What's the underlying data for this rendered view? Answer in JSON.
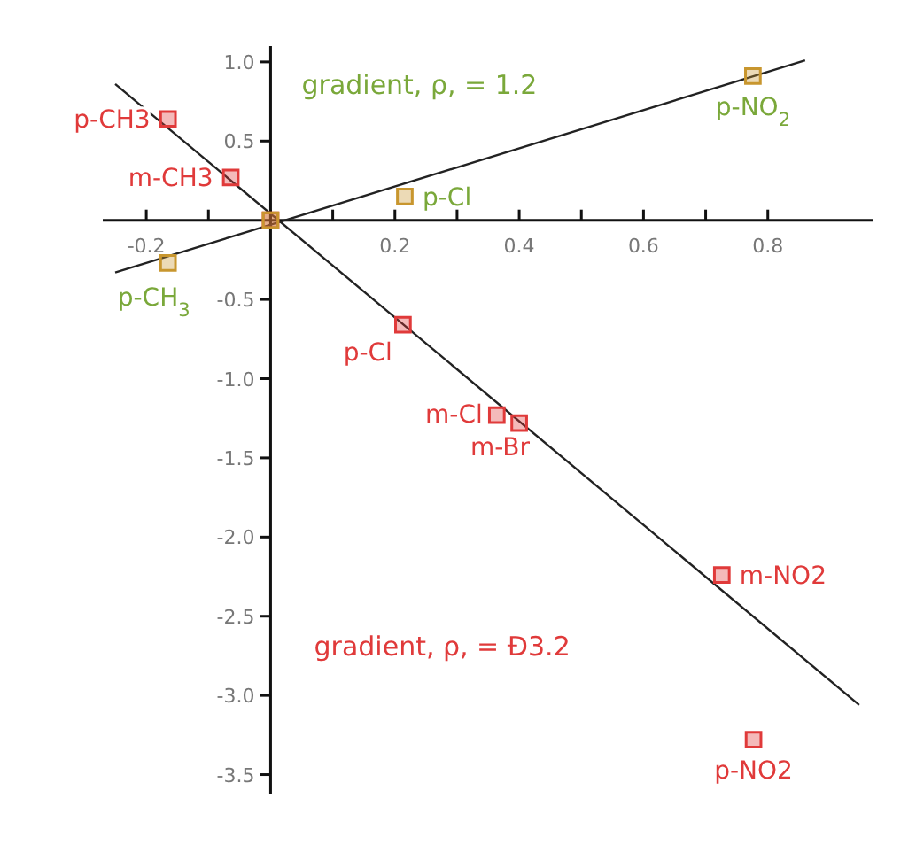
{
  "chart_data": {
    "type": "scatter",
    "marker": "square",
    "xlim": [
      -0.27,
      0.97
    ],
    "ylim": [
      -3.62,
      1.1
    ],
    "xticks": [
      -0.2,
      {
        "value": -0.1,
        "label": null
      },
      {
        "value": 0,
        "label": null
      },
      {
        "value": 0.1,
        "label": null
      },
      0.2,
      {
        "value": 0.3,
        "label": null
      },
      0.4,
      {
        "value": 0.5,
        "label": null
      },
      0.6,
      {
        "value": 0.7,
        "label": null
      },
      0.8
    ],
    "yticks": [
      {
        "value": 1,
        "label": "1.0"
      },
      0.5,
      -0.5,
      {
        "value": -1,
        "label": "-1.0"
      },
      -1.5,
      {
        "value": -2,
        "label": "-2.0"
      },
      -2.5,
      {
        "value": -3,
        "label": "-3.0"
      },
      -3.5
    ],
    "series": [
      {
        "color": "#e03a3a",
        "x": [
          -0.165,
          -0.064,
          0,
          0.213,
          0.364,
          0.4,
          0.726,
          0.777
        ],
        "values": [
          0.64,
          0.27,
          0,
          -0.66,
          -1.23,
          -1.28,
          -2.24,
          -3.28
        ]
      },
      {
        "color": "#c8962e",
        "x": [
          -0.165,
          0,
          0.216,
          0.776
        ],
        "values": [
          -0.27,
          0,
          0.15,
          0.91
        ]
      },
      {
        "type": "line",
        "marker": "none",
        "color": "#222222",
        "x": [
          -0.25,
          0.947
        ],
        "values": [
          0.86,
          -3.06
        ]
      },
      {
        "type": "line",
        "marker": "none",
        "color": "#222222",
        "x": [
          -0.25,
          0.86
        ],
        "values": [
          -0.33,
          1.01
        ]
      }
    ],
    "annotations": [
      "gradient, ρ, = 1.2",
      "gradient, ρ, = Đ3.2",
      {
        "text": "p-CH3",
        "x": -0.165,
        "y": 0.64
      },
      {
        "text": "m-CH3",
        "x": -0.064,
        "y": 0.27
      },
      {
        "text": "p-Cl",
        "x": 0.213,
        "y": -0.66
      },
      {
        "text": "m-Cl",
        "x": 0.364,
        "y": -1.23
      },
      {
        "text": "m-Br",
        "x": 0.4,
        "y": -1.28
      },
      {
        "text": "m-NO2",
        "x": 0.726,
        "y": -2.24
      },
      {
        "text": "p-NO2",
        "x": 0.777,
        "y": -3.28
      },
      {
        "text": "p-CH$_{3}$",
        "x": -0.165,
        "y": -0.27
      },
      {
        "text": "p-Cl",
        "x": 0.216,
        "y": 0.15
      },
      {
        "text": "p-NO$_{2}$",
        "x": 0.776,
        "y": 0.91
      }
    ]
  }
}
